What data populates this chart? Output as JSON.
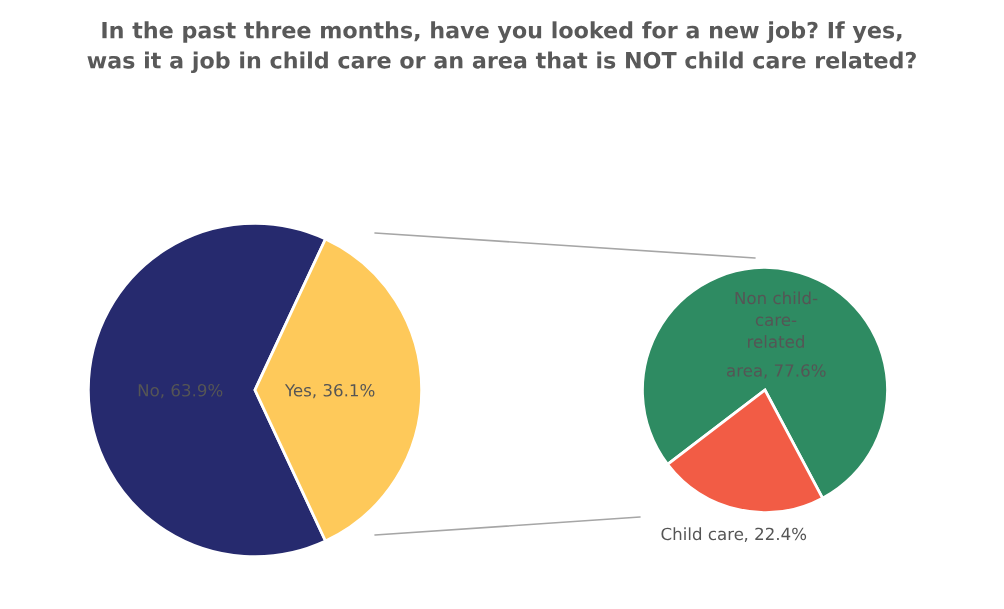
{
  "chart_data": [
    {
      "type": "pie",
      "title": "In the past three months, have you looked for a new job? If yes, was it a job in child care or an area that is NOT child care related?",
      "categories": [
        "No",
        "Yes"
      ],
      "values": [
        63.9,
        36.1
      ],
      "colors": [
        "#262a6e",
        "#fec95a"
      ],
      "value_labels": [
        ", 63.9%",
        ", 36.1%"
      ]
    },
    {
      "type": "pie",
      "categories": [
        "Non child-care-related area",
        "Child care"
      ],
      "values": [
        77.6,
        22.4
      ],
      "colors": [
        "#2e8b62",
        "#f25c45"
      ],
      "value_labels": [
        ", 77.6%",
        ", 22.4%"
      ]
    }
  ]
}
